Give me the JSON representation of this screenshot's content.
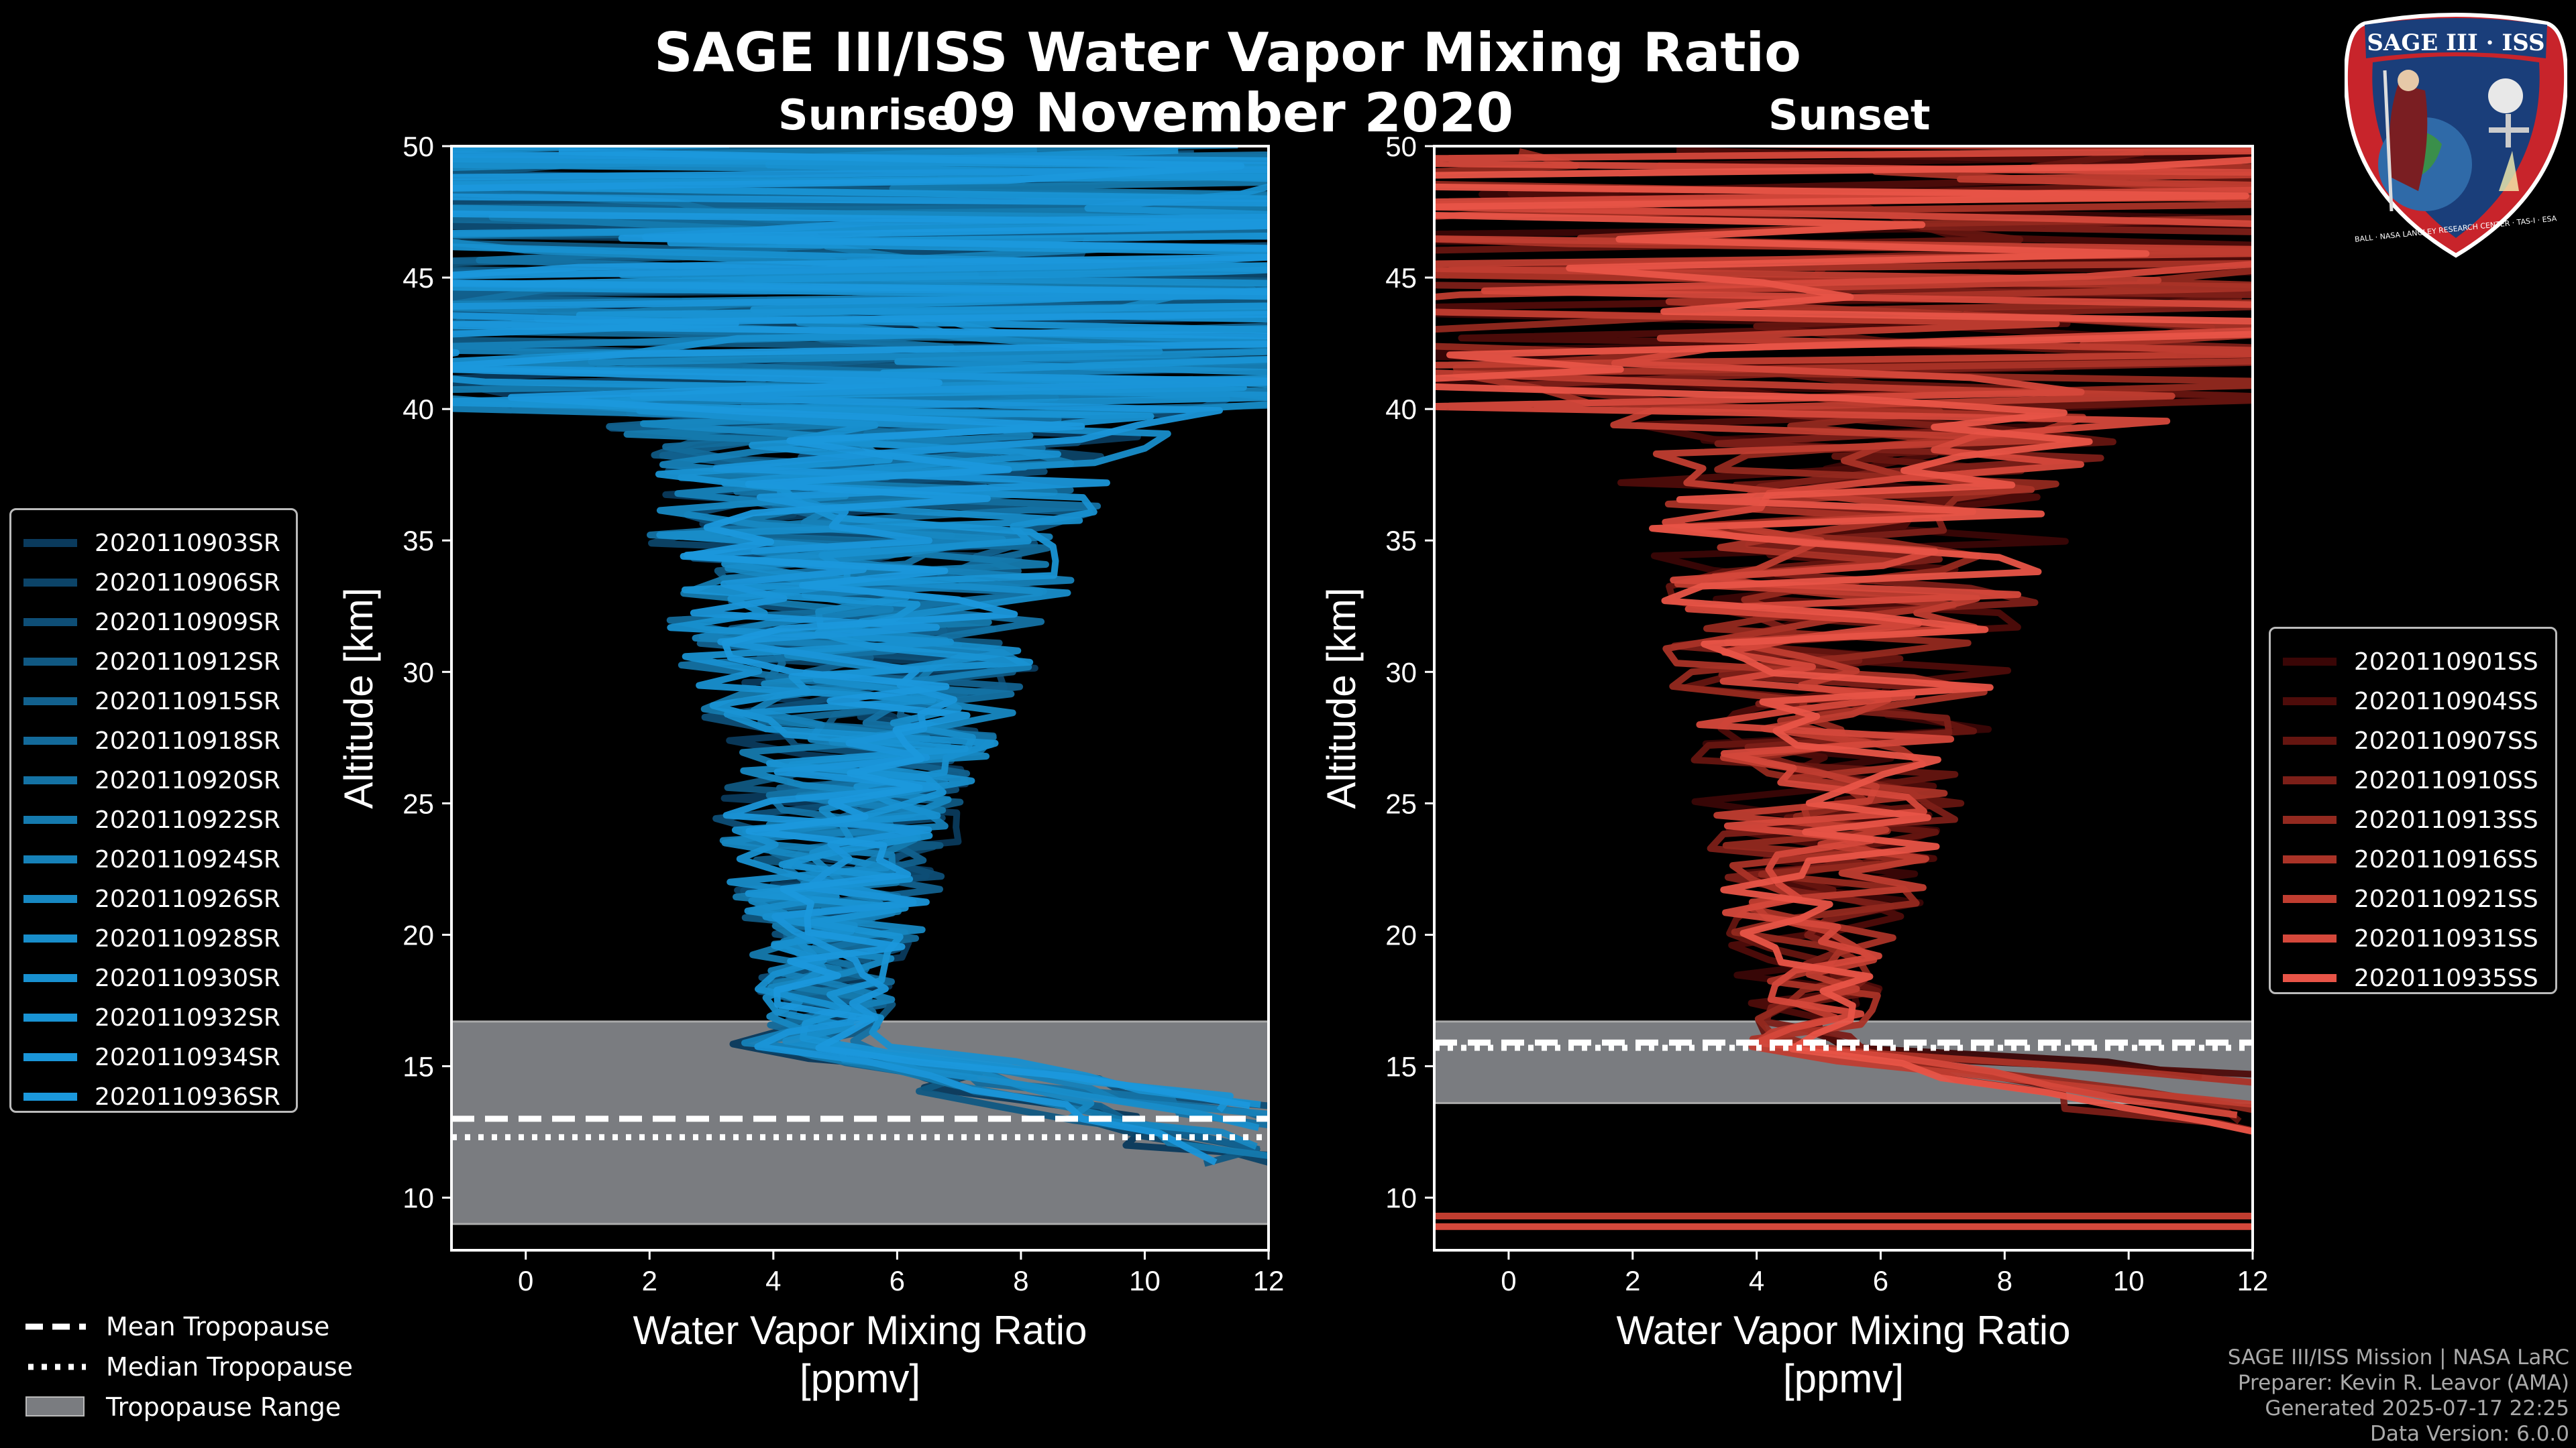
{
  "title": "SAGE III/ISS Water Vapor Mixing Ratio",
  "date": "09 November 2020",
  "left_panel_label": "Sunrise",
  "right_panel_label": "Sunset",
  "logo": {
    "text": "SAGE III · ISS",
    "ring_text": "BALL · NASA LANGLEY RESEARCH CENTER · TAS-I · ESA"
  },
  "credits": [
    "SAGE III/ISS Mission | NASA LaRC",
    "Preparer: Kevin R. Leavor (AMA)",
    "Generated 2025-07-17 22:25",
    "Data Version: 6.0.0"
  ],
  "tropopause_legend": [
    {
      "label": "Mean Tropopause",
      "style": "dashed"
    },
    {
      "label": "Median Tropopause",
      "style": "dotted"
    },
    {
      "label": "Tropopause Range",
      "style": "patch"
    }
  ],
  "colors": {
    "sunrise": "#1a8fd6",
    "sunset": "#e8554a",
    "tropopause_range": "#7a7c80"
  },
  "chart_data": [
    {
      "type": "line",
      "panel": "sunrise",
      "xlabel": "Water Vapor Mixing Ratio\n[ppmv]",
      "ylabel": "Altitude [km]",
      "xlim": [
        -1.2,
        12
      ],
      "ylim": [
        8,
        50
      ],
      "xticks": [
        0,
        2,
        4,
        6,
        8,
        10,
        12
      ],
      "yticks": [
        10,
        15,
        20,
        25,
        30,
        35,
        40,
        45,
        50
      ],
      "tropopause": {
        "mean": 13.0,
        "median": 12.3,
        "range": [
          9.0,
          16.7
        ]
      },
      "series": [
        {
          "name": "2020110903SR",
          "color": "#0a3a5c"
        },
        {
          "name": "2020110906SR",
          "color": "#0c4468"
        },
        {
          "name": "2020110909SR",
          "color": "#0e4e76"
        },
        {
          "name": "2020110912SR",
          "color": "#105882"
        },
        {
          "name": "2020110915SR",
          "color": "#12618e"
        },
        {
          "name": "2020110918SR",
          "color": "#136a9a"
        },
        {
          "name": "2020110920SR",
          "color": "#1472a4"
        },
        {
          "name": "2020110922SR",
          "color": "#157aae"
        },
        {
          "name": "2020110924SR",
          "color": "#1681b8"
        },
        {
          "name": "2020110926SR",
          "color": "#1788c2"
        },
        {
          "name": "2020110928SR",
          "color": "#188dca"
        },
        {
          "name": "2020110930SR",
          "color": "#1890d0"
        },
        {
          "name": "2020110932SR",
          "color": "#1993d4"
        },
        {
          "name": "2020110934SR",
          "color": "#1a95d8"
        },
        {
          "name": "2020110936SR",
          "color": "#1b98dc"
        }
      ]
    },
    {
      "type": "line",
      "panel": "sunset",
      "xlabel": "Water Vapor Mixing Ratio\n[ppmv]",
      "ylabel": "Altitude [km]",
      "xlim": [
        -1.2,
        12
      ],
      "ylim": [
        8,
        50
      ],
      "xticks": [
        0,
        2,
        4,
        6,
        8,
        10,
        12
      ],
      "yticks": [
        10,
        15,
        20,
        25,
        30,
        35,
        40,
        45,
        50
      ],
      "tropopause": {
        "mean": 15.9,
        "median": 15.7,
        "range": [
          13.6,
          16.7
        ]
      },
      "series": [
        {
          "name": "2020110901SS",
          "color": "#3a0606"
        },
        {
          "name": "2020110904SS",
          "color": "#4e0c0a"
        },
        {
          "name": "2020110907SS",
          "color": "#651510"
        },
        {
          "name": "2020110910SS",
          "color": "#7c1f18"
        },
        {
          "name": "2020110913SS",
          "color": "#93291f"
        },
        {
          "name": "2020110916SS",
          "color": "#aa3327"
        },
        {
          "name": "2020110921SS",
          "color": "#c03d30"
        },
        {
          "name": "2020110931SS",
          "color": "#d5483b"
        },
        {
          "name": "2020110935SS",
          "color": "#e85447"
        }
      ]
    }
  ]
}
